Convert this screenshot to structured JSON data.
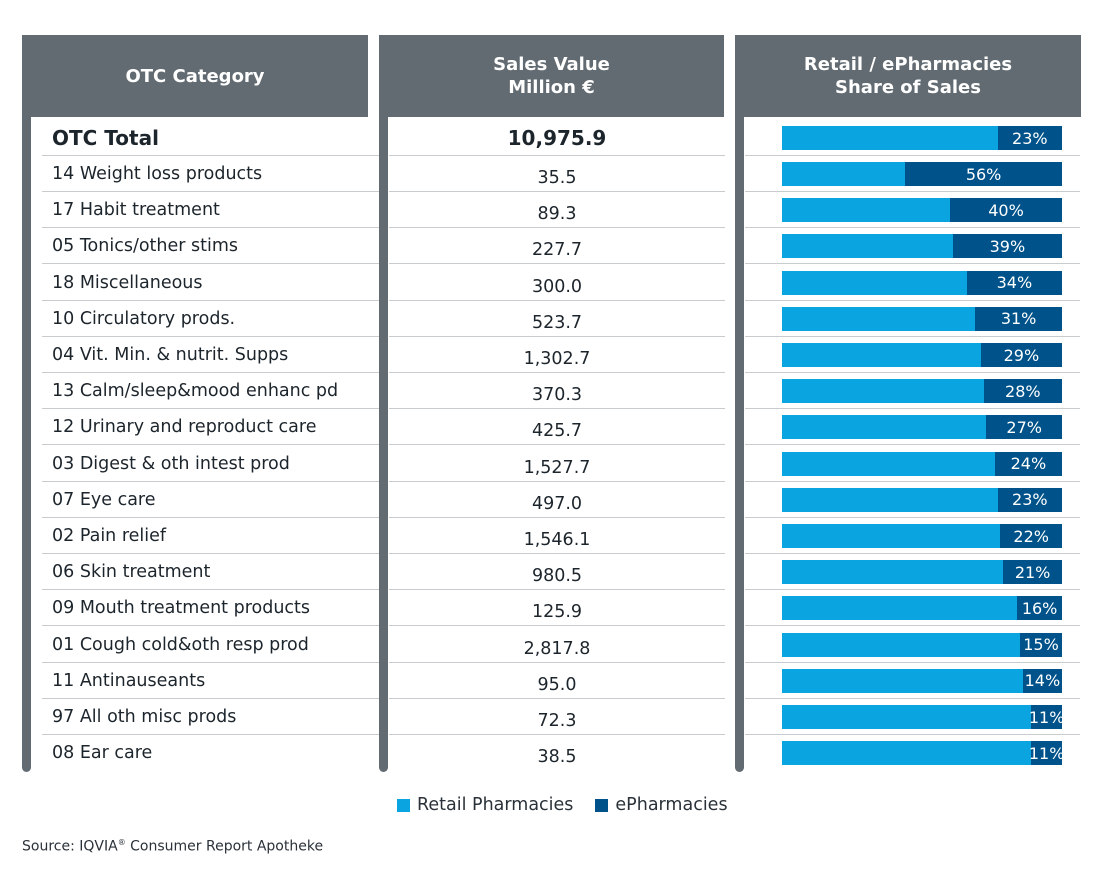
{
  "headers": {
    "category": "OTC Category",
    "sales": "Sales Value\nMillion €",
    "share": "Retail / ePharmacies\nShare of Sales"
  },
  "colors": {
    "retail": "#0aa4e0",
    "epharmacies": "#00538a",
    "header": "#626b72"
  },
  "legend": {
    "retail": "Retail Pharmacies",
    "epharmacies": "ePharmacies"
  },
  "source": {
    "prefix": "Source: IQVIA",
    "mark": "®",
    "suffix": " Consumer Report Apotheke"
  },
  "chart_data": {
    "type": "table",
    "columns": [
      "OTC Category",
      "Sales Value Million €",
      "Retail / ePharmacies Share of Sales"
    ],
    "series": [
      {
        "name": "Retail Pharmacies"
      },
      {
        "name": "ePharmacies"
      }
    ],
    "rows": [
      {
        "category": "OTC Total",
        "sales": "10,975.9",
        "epharmacies_share": 23,
        "label": "23%"
      },
      {
        "category": "14 Weight loss products",
        "sales": "35.5",
        "epharmacies_share": 56,
        "label": "56%"
      },
      {
        "category": "17 Habit treatment",
        "sales": "89.3",
        "epharmacies_share": 40,
        "label": "40%"
      },
      {
        "category": "05 Tonics/other stims",
        "sales": "227.7",
        "epharmacies_share": 39,
        "label": "39%"
      },
      {
        "category": "18 Miscellaneous",
        "sales": "300.0",
        "epharmacies_share": 34,
        "label": "34%"
      },
      {
        "category": "10 Circulatory prods.",
        "sales": "523.7",
        "epharmacies_share": 31,
        "label": "31%"
      },
      {
        "category": "04 Vit. Min. & nutrit. Supps",
        "sales": "1,302.7",
        "epharmacies_share": 29,
        "label": "29%"
      },
      {
        "category": "13 Calm/sleep&mood enhanc pd",
        "sales": "370.3",
        "epharmacies_share": 28,
        "label": "28%"
      },
      {
        "category": "12 Urinary and reproduct care",
        "sales": "425.7",
        "epharmacies_share": 27,
        "label": "27%"
      },
      {
        "category": "03 Digest & oth intest prod",
        "sales": "1,527.7",
        "epharmacies_share": 24,
        "label": "24%"
      },
      {
        "category": "07 Eye care",
        "sales": "497.0",
        "epharmacies_share": 23,
        "label": "23%"
      },
      {
        "category": "02 Pain relief",
        "sales": "1,546.1",
        "epharmacies_share": 22,
        "label": "22%"
      },
      {
        "category": "06 Skin treatment",
        "sales": "980.5",
        "epharmacies_share": 21,
        "label": "21%"
      },
      {
        "category": "09 Mouth treatment products",
        "sales": "125.9",
        "epharmacies_share": 16,
        "label": "16%"
      },
      {
        "category": "01 Cough cold&oth resp prod",
        "sales": "2,817.8",
        "epharmacies_share": 15,
        "label": "15%"
      },
      {
        "category": "11 Antinauseants",
        "sales": "95.0",
        "epharmacies_share": 14,
        "label": "14%"
      },
      {
        "category": "97 All oth misc prods",
        "sales": "72.3",
        "epharmacies_share": 11,
        "label": "11%"
      },
      {
        "category": "08 Ear care",
        "sales": "38.5",
        "epharmacies_share": 11,
        "label": "11%"
      }
    ]
  }
}
